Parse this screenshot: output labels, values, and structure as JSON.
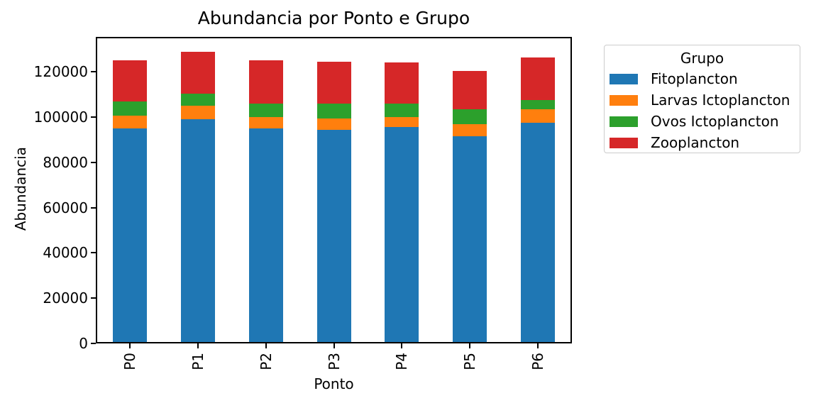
{
  "chart_data": {
    "type": "bar",
    "stacked": true,
    "title": "Abundancia por Ponto e Grupo",
    "xlabel": "Ponto",
    "ylabel": "Abundancia",
    "categories": [
      "P0",
      "P1",
      "P2",
      "P3",
      "P4",
      "P5",
      "P6"
    ],
    "series": [
      {
        "name": "Fitoplancton",
        "color": "#1f77b4",
        "values": [
          95000,
          99000,
          95000,
          94500,
          95500,
          91500,
          97500
        ]
      },
      {
        "name": "Larvas Ictoplancton",
        "color": "#ff7f0e",
        "values": [
          5500,
          6000,
          5000,
          5000,
          4500,
          5500,
          6000
        ]
      },
      {
        "name": "Ovos Ictoplancton",
        "color": "#2ca02c",
        "values": [
          6500,
          5500,
          6000,
          6500,
          6000,
          6500,
          4000
        ]
      },
      {
        "name": "Zooplancton",
        "color": "#d62728",
        "values": [
          18000,
          18500,
          19000,
          18500,
          18300,
          17000,
          19000
        ]
      }
    ],
    "totals": [
      125000,
      129000,
      125000,
      124500,
      124300,
      120500,
      126500
    ],
    "yticks": [
      0,
      20000,
      40000,
      60000,
      80000,
      100000,
      120000
    ],
    "ylim": [
      0,
      135450
    ],
    "xtick_rotation": 90,
    "grid": false,
    "legend": {
      "title": "Grupo",
      "position": "outside upper right"
    }
  }
}
